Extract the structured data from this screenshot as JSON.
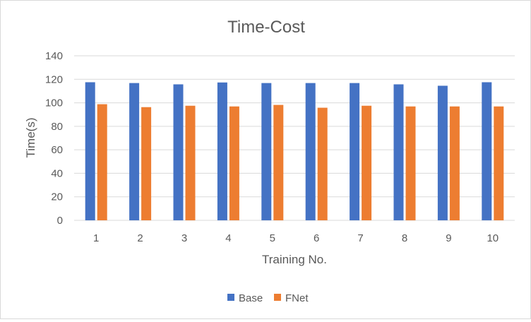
{
  "chart_data": {
    "type": "bar",
    "title": "Time-Cost",
    "xlabel": "Training No.",
    "ylabel": "Time(s)",
    "ylim": [
      0,
      140
    ],
    "yticks": [
      0,
      20,
      40,
      60,
      80,
      100,
      120,
      140
    ],
    "categories": [
      "1",
      "2",
      "3",
      "4",
      "5",
      "6",
      "7",
      "8",
      "9",
      "10"
    ],
    "series": [
      {
        "name": "Base",
        "color": "#4472c4",
        "values": [
          117.5,
          116.8,
          115.7,
          117.3,
          116.8,
          116.8,
          116.8,
          115.7,
          114.5,
          117.5
        ]
      },
      {
        "name": "FNet",
        "color": "#ed7d31",
        "values": [
          98.8,
          96.3,
          97.5,
          96.9,
          98.2,
          95.8,
          97.5,
          96.9,
          96.9,
          96.9
        ]
      }
    ],
    "grid": true,
    "gridColor": "#d9d9d9",
    "legend": "bottom"
  }
}
